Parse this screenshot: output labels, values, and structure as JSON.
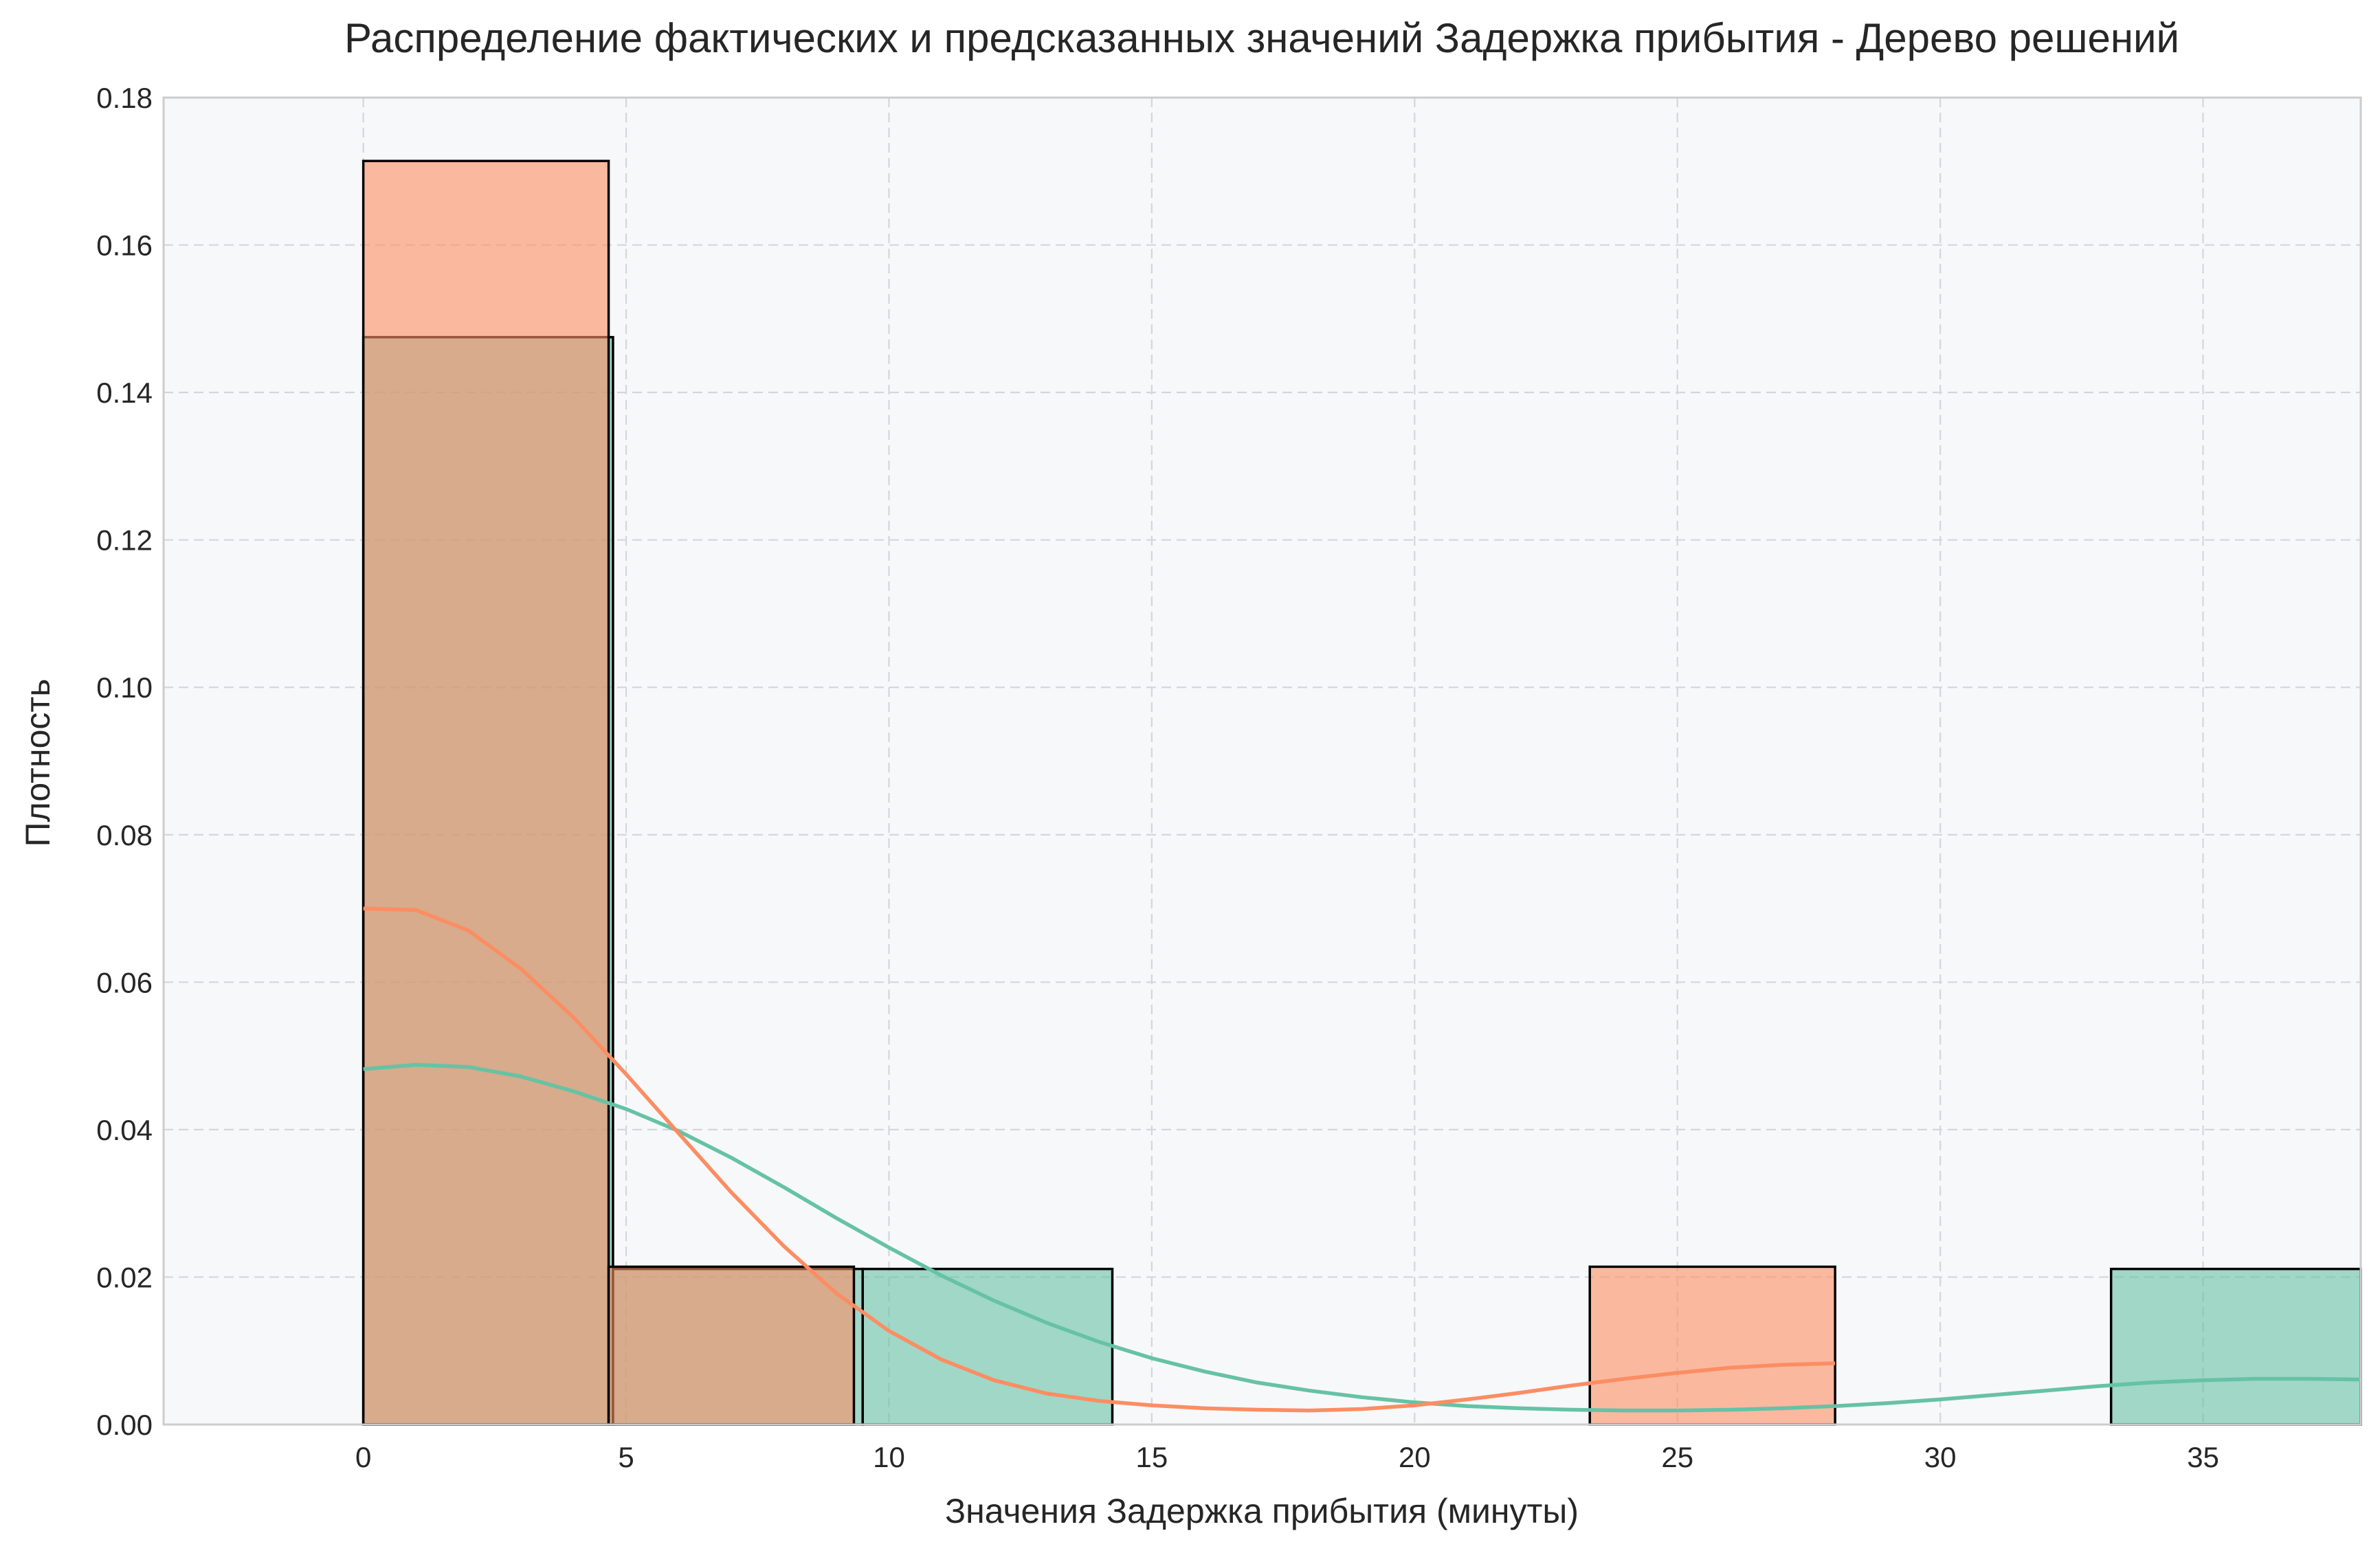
{
  "chart_data": {
    "type": "histogram",
    "title": "Распределение фактических и предсказанных значений Задержка прибытия - Дерево решений",
    "xlabel": "Значения Задержка прибытия (минуты)",
    "ylabel": "Плотность",
    "xlim": [
      -3.8,
      38.0
    ],
    "ylim": [
      0,
      0.18
    ],
    "x_ticks": [
      0,
      5,
      10,
      15,
      20,
      25,
      30,
      35
    ],
    "y_ticks": [
      0.0,
      0.02,
      0.04,
      0.06,
      0.08,
      0.1,
      0.12,
      0.14,
      0.16,
      0.18
    ],
    "grid": true,
    "legend": "none",
    "series": [
      {
        "key": "actual",
        "color": "#66c2a5",
        "bins": [
          {
            "x0": 0,
            "x1": 4.75,
            "density": 0.1475
          },
          {
            "x0": 4.75,
            "x1": 9.5,
            "density": 0.0211
          },
          {
            "x0": 9.5,
            "x1": 14.25,
            "density": 0.0211
          },
          {
            "x0": 14.25,
            "x1": 19.0,
            "density": 0
          },
          {
            "x0": 19.0,
            "x1": 23.75,
            "density": 0
          },
          {
            "x0": 23.75,
            "x1": 28.5,
            "density": 0
          },
          {
            "x0": 28.5,
            "x1": 33.25,
            "density": 0
          },
          {
            "x0": 33.25,
            "x1": 38.0,
            "density": 0.0211
          }
        ],
        "kde": [
          [
            0,
            0.0482
          ],
          [
            1,
            0.0488
          ],
          [
            2,
            0.0485
          ],
          [
            3,
            0.0472
          ],
          [
            4,
            0.0452
          ],
          [
            5,
            0.0428
          ],
          [
            6,
            0.0398
          ],
          [
            7,
            0.0362
          ],
          [
            8,
            0.0322
          ],
          [
            9,
            0.028
          ],
          [
            10,
            0.024
          ],
          [
            11,
            0.0202
          ],
          [
            12,
            0.0168
          ],
          [
            13,
            0.0138
          ],
          [
            14,
            0.0112
          ],
          [
            15,
            0.009
          ],
          [
            16,
            0.0072
          ],
          [
            17,
            0.0057
          ],
          [
            18,
            0.0046
          ],
          [
            19,
            0.0037
          ],
          [
            20,
            0.003
          ],
          [
            21,
            0.0025
          ],
          [
            22,
            0.0022
          ],
          [
            23,
            0.002
          ],
          [
            24,
            0.0019
          ],
          [
            25,
            0.0019
          ],
          [
            26,
            0.002
          ],
          [
            27,
            0.0022
          ],
          [
            28,
            0.0025
          ],
          [
            29,
            0.0029
          ],
          [
            30,
            0.0034
          ],
          [
            31,
            0.004
          ],
          [
            32,
            0.0046
          ],
          [
            33,
            0.0052
          ],
          [
            34,
            0.0057
          ],
          [
            35,
            0.006
          ],
          [
            36,
            0.0062
          ],
          [
            37,
            0.0062
          ],
          [
            38,
            0.0061
          ]
        ]
      },
      {
        "key": "predicted",
        "color": "#fc8d62",
        "bins": [
          {
            "x0": 0,
            "x1": 4.667,
            "density": 0.1714
          },
          {
            "x0": 4.667,
            "x1": 9.333,
            "density": 0.0214
          },
          {
            "x0": 9.333,
            "x1": 14.0,
            "density": 0
          },
          {
            "x0": 14.0,
            "x1": 18.667,
            "density": 0
          },
          {
            "x0": 18.667,
            "x1": 23.333,
            "density": 0
          },
          {
            "x0": 23.333,
            "x1": 28.0,
            "density": 0.0214
          }
        ],
        "kde": [
          [
            0,
            0.07
          ],
          [
            1,
            0.0698
          ],
          [
            2,
            0.067
          ],
          [
            3,
            0.0618
          ],
          [
            4,
            0.0552
          ],
          [
            5,
            0.0475
          ],
          [
            6,
            0.0395
          ],
          [
            7,
            0.0315
          ],
          [
            8,
            0.0242
          ],
          [
            9,
            0.0178
          ],
          [
            10,
            0.0127
          ],
          [
            11,
            0.0088
          ],
          [
            12,
            0.006
          ],
          [
            13,
            0.0042
          ],
          [
            14,
            0.0032
          ],
          [
            15,
            0.0026
          ],
          [
            16,
            0.0022
          ],
          [
            17,
            0.002
          ],
          [
            18,
            0.0019
          ],
          [
            19,
            0.0021
          ],
          [
            20,
            0.0026
          ],
          [
            21,
            0.0034
          ],
          [
            22,
            0.0043
          ],
          [
            23,
            0.0053
          ],
          [
            24,
            0.0062
          ],
          [
            25,
            0.007
          ],
          [
            26,
            0.0077
          ],
          [
            27,
            0.0081
          ],
          [
            28,
            0.0083
          ]
        ]
      }
    ]
  }
}
